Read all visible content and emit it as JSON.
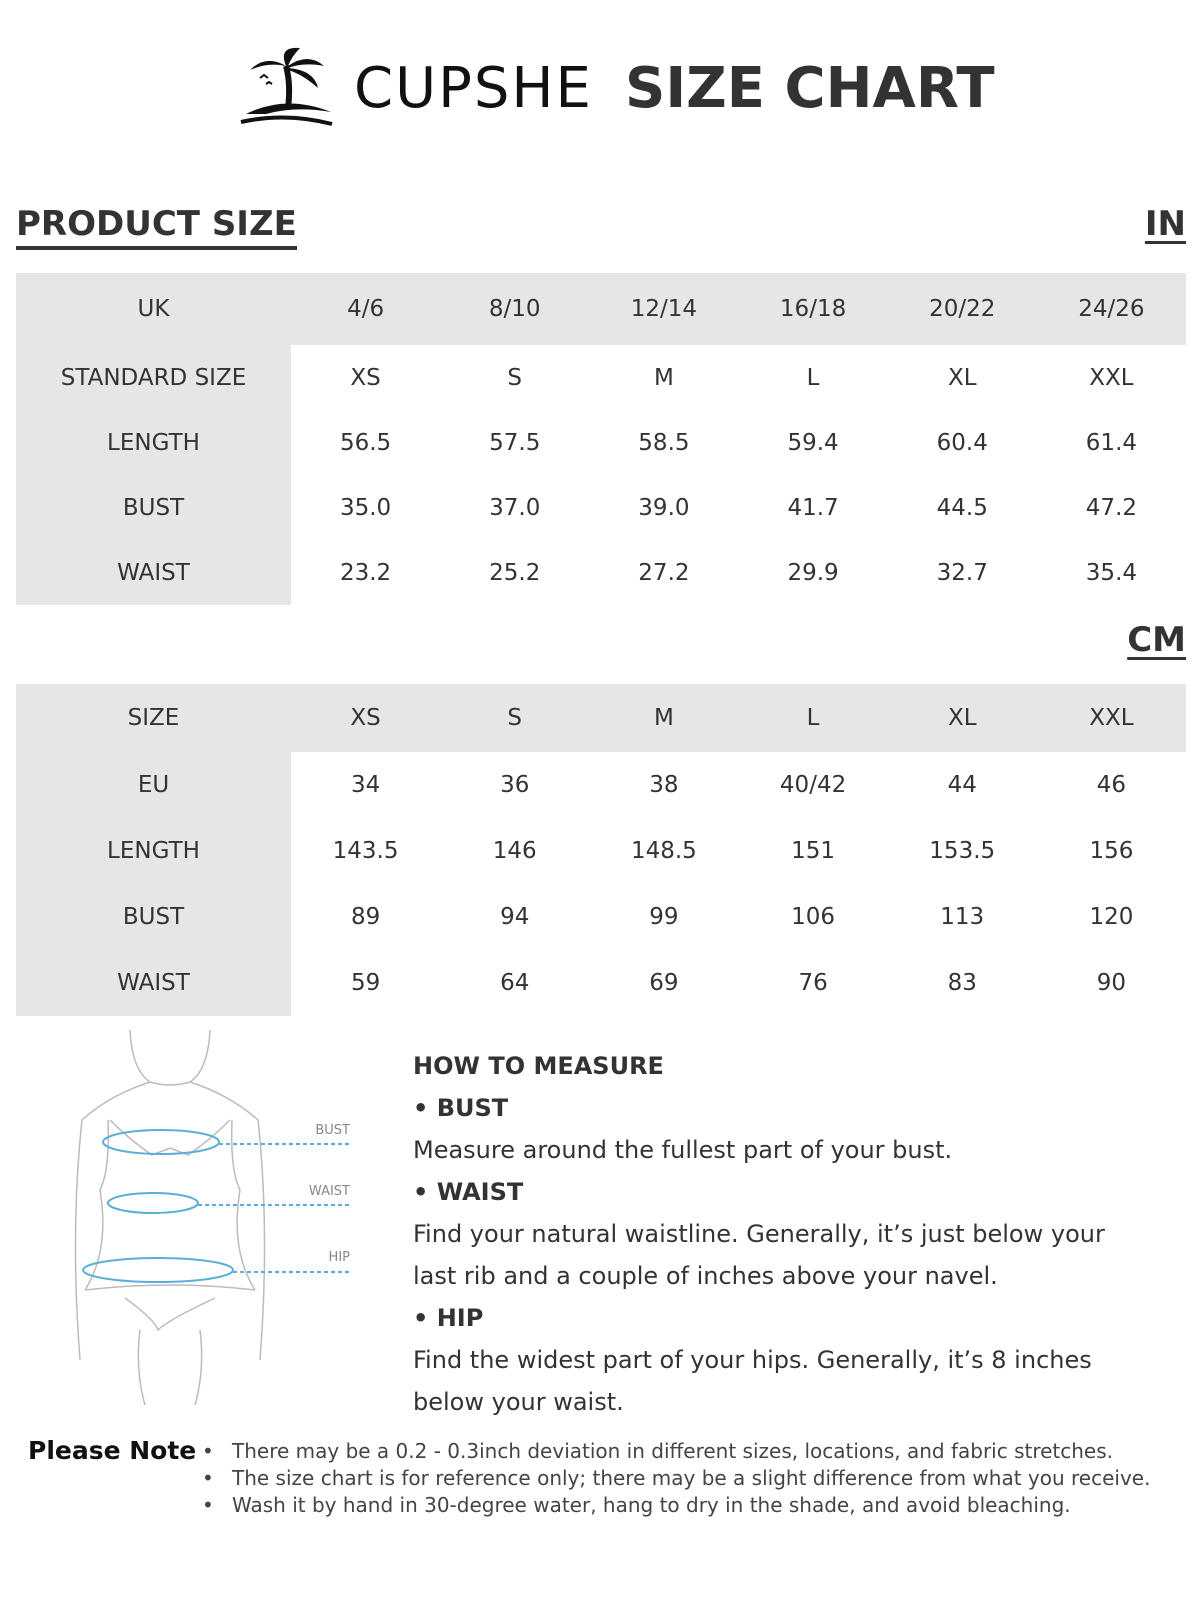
{
  "header": {
    "brand": "CUPSHE",
    "title": "SIZE CHART"
  },
  "section_title": "PRODUCT SIZE",
  "tables": [
    {
      "unit": "IN",
      "rows": [
        [
          "UK",
          "4/6",
          "8/10",
          "12/14",
          "16/18",
          "20/22",
          "24/26"
        ],
        [
          "STANDARD SIZE",
          "XS",
          "S",
          "M",
          "L",
          "XL",
          "XXL"
        ],
        [
          "LENGTH",
          "56.5",
          "57.5",
          "58.5",
          "59.4",
          "60.4",
          "61.4"
        ],
        [
          "BUST",
          "35.0",
          "37.0",
          "39.0",
          "41.7",
          "44.5",
          "47.2"
        ],
        [
          "WAIST",
          "23.2",
          "25.2",
          "27.2",
          "29.9",
          "32.7",
          "35.4"
        ]
      ]
    },
    {
      "unit": "CM",
      "rows": [
        [
          "SIZE",
          "XS",
          "S",
          "M",
          "L",
          "XL",
          "XXL"
        ],
        [
          "EU",
          "34",
          "36",
          "38",
          "40/42",
          "44",
          "46"
        ],
        [
          "LENGTH",
          "143.5",
          "146",
          "148.5",
          "151",
          "153.5",
          "156"
        ],
        [
          "BUST",
          "89",
          "94",
          "99",
          "106",
          "113",
          "120"
        ],
        [
          "WAIST",
          "59",
          "64",
          "69",
          "76",
          "83",
          "90"
        ]
      ]
    }
  ],
  "figure": {
    "labels": [
      "BUST",
      "WAIST",
      "HIP"
    ]
  },
  "measure": {
    "title": "HOW TO MEASURE",
    "items": [
      {
        "name": "• BUST",
        "text": "Measure around the fullest part of your bust."
      },
      {
        "name": "• WAIST",
        "text": "Find your natural waistline. Generally, it’s just below your last rib and a couple of inches above your navel."
      },
      {
        "name": "• HIP",
        "text": "Find the widest part of your hips. Generally, it’s 8 inches below your waist."
      }
    ]
  },
  "note": {
    "title": "Please Note",
    "items": [
      "There may be a 0.2 - 0.3inch deviation in different sizes, locations, and fabric stretches.",
      "The size chart is for reference only; there may be a slight difference from what you receive.",
      "Wash it by hand in 30-degree water, hang to dry in the shade, and avoid bleaching."
    ]
  }
}
